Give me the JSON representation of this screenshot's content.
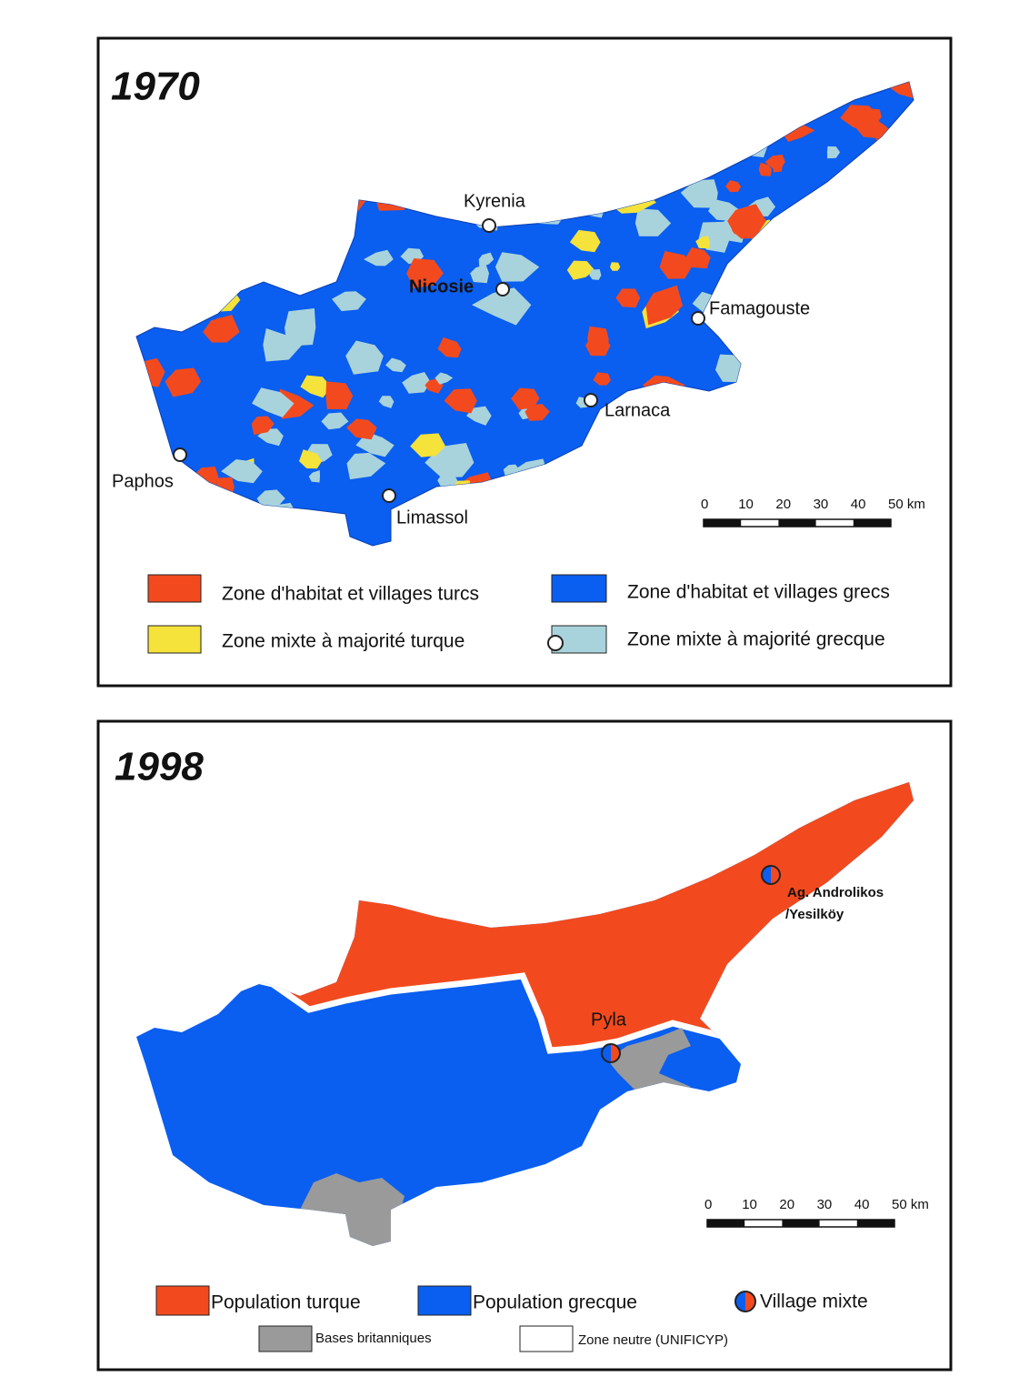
{
  "maps": [
    {
      "title": "1970",
      "places": [
        {
          "name": "Kyrenia"
        },
        {
          "name": "Nicosie"
        },
        {
          "name": "Famagouste"
        },
        {
          "name": "Larnaca"
        },
        {
          "name": "Limassol"
        },
        {
          "name": "Paphos"
        }
      ],
      "scale_labels": [
        "0",
        "10",
        "20",
        "30",
        "40",
        "50 km"
      ],
      "legend": [
        {
          "label": "Zone d'habitat et villages turcs",
          "color": "#f24a1e"
        },
        {
          "label": "Zone d'habitat et villages grecs",
          "color": "#0a5ef0"
        },
        {
          "label": "Zone mixte à majorité turque",
          "color": "#f5e23a"
        },
        {
          "label": "Zone mixte à majorité grecque",
          "color": "#a9d3dc"
        }
      ]
    },
    {
      "title": "1998",
      "places": [
        {
          "name": "Pyla"
        },
        {
          "name": "Ag. Androlikos"
        },
        {
          "name": "/Yesilköy"
        }
      ],
      "scale_labels": [
        "0",
        "10",
        "20",
        "30",
        "40",
        "50 km"
      ],
      "legend": [
        {
          "label": "Population turque",
          "color": "#f24a1e"
        },
        {
          "label": "Population grecque",
          "color": "#0a5ef0"
        },
        {
          "label": "Village mixte"
        },
        {
          "label": "Bases britanniques",
          "color": "#9a9a9a"
        },
        {
          "label": "Zone neutre (UNIFICYP)",
          "color": "#ffffff"
        }
      ]
    }
  ]
}
